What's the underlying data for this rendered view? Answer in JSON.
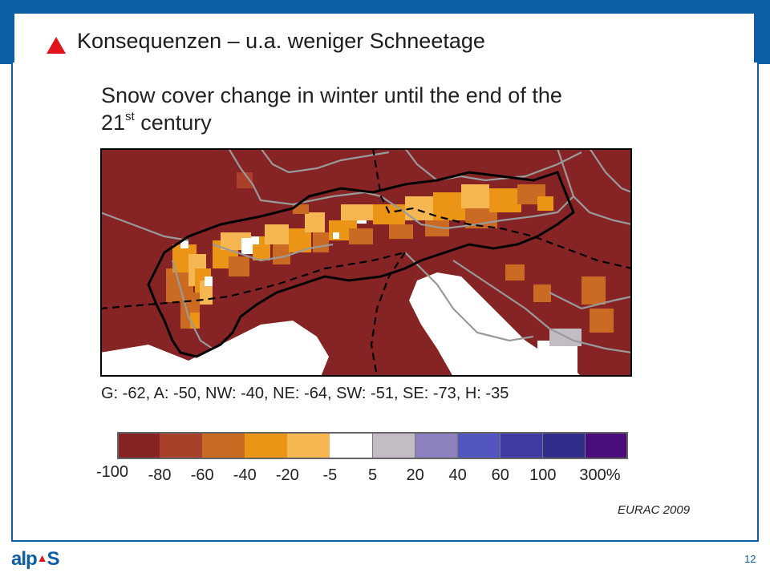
{
  "slide": {
    "title": "Konsequenzen  – u.a. weniger Schneetage",
    "page_number": "12",
    "source": "EURAC 2009",
    "logo_text": "alp S"
  },
  "figure": {
    "title_line1": "Snow cover change in winter until the end of the",
    "title_line2_num": "21",
    "title_line2_sup": "st",
    "title_line2_rest": " century",
    "regions_summary": "G: -62, A: -50, NW: -40, NE: -64, SW: -51, SE: -73, H: -35"
  },
  "colorbar": {
    "colors": [
      "#862325",
      "#a9412a",
      "#cb6b23",
      "#ec9416",
      "#f6b652",
      "#ffffff",
      "#c3bcc4",
      "#8c80bd",
      "#5356bf",
      "#3f3ba3",
      "#302e8d",
      "#4c0d7c"
    ],
    "ticks": [
      "-100",
      "-80",
      "-60",
      "-40",
      "-20",
      "-5",
      "5",
      "20",
      "40",
      "60",
      "100",
      "300%"
    ]
  },
  "map_palette": {
    "background": "#862325",
    "mid": "#cb6b23",
    "orange": "#ec9416",
    "light": "#f6b652",
    "white": "#ffffff",
    "country_border": "#9a9a9a",
    "alps_outline": "#000000"
  }
}
